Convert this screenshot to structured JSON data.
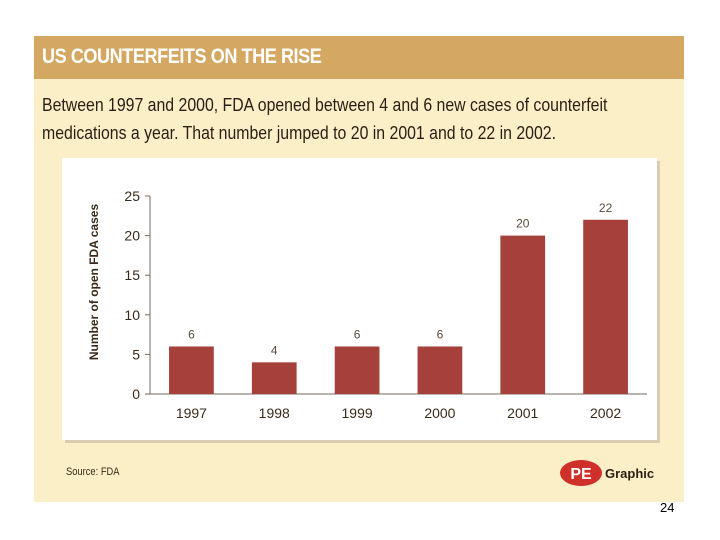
{
  "header": {
    "title": "US COUNTERFEITS ON THE RISE",
    "subtitle_line1": "Between 1997 and 2000, FDA opened between 4 and 6 new cases of counterfeit",
    "subtitle_line2": "medications a year. That number jumped to 20 in 2001 and to 22 in 2002."
  },
  "footer": {
    "source": "Source: FDA",
    "logo_mark": "PE",
    "logo_text": "Graphic",
    "page_number": "24"
  },
  "colors": {
    "header_bar": "#d4a862",
    "card_background": "#fbefc8",
    "bar": "#a5413a",
    "logo_red": "#d0302a"
  },
  "chart_data": {
    "type": "bar",
    "title": "",
    "xlabel": "",
    "ylabel": "Number of open FDA cases",
    "categories": [
      "1997",
      "1998",
      "1999",
      "2000",
      "2001",
      "2002"
    ],
    "values": [
      6,
      4,
      6,
      6,
      20,
      22
    ],
    "data_labels": [
      "6",
      "4",
      "6",
      "6",
      "20",
      "22"
    ],
    "ylim": [
      0,
      25
    ],
    "yticks": [
      0,
      5,
      10,
      15,
      20,
      25
    ],
    "grid": false
  }
}
